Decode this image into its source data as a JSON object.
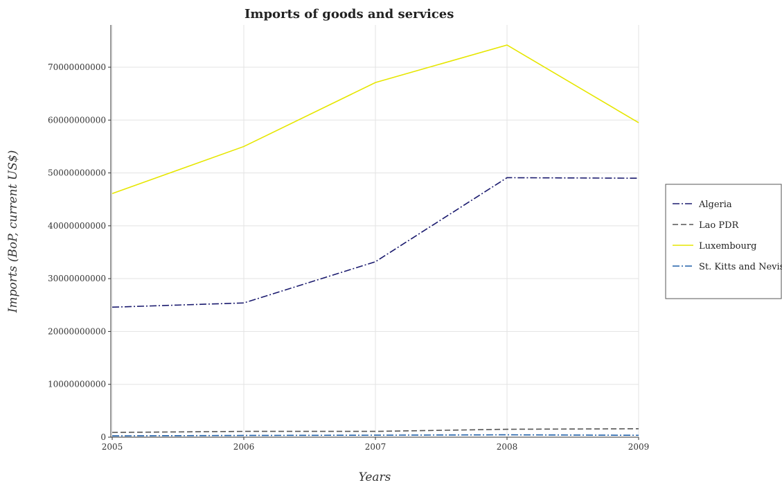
{
  "chart_data": {
    "type": "line",
    "title": "Imports of goods and services",
    "xlabel": "Years",
    "ylabel": "Imports (BoP, current US$)",
    "categories": [
      "2005",
      "2006",
      "2007",
      "2008",
      "2009"
    ],
    "ylim": [
      0,
      78000000000
    ],
    "yticks": [
      0,
      10000000000,
      20000000000,
      30000000000,
      40000000000,
      50000000000,
      60000000000,
      70000000000
    ],
    "ytick_labels": [
      "0",
      "10000000000",
      "20000000000",
      "30000000000",
      "40000000000",
      "50000000000",
      "60000000000",
      "70000000000"
    ],
    "grid": true,
    "legend_position": "right",
    "series": [
      {
        "name": "Algeria",
        "color": "#1a1a6e",
        "dash": "dashdot",
        "values": [
          24600000000,
          25400000000,
          33200000000,
          49100000000,
          49000000000
        ]
      },
      {
        "name": "Lao PDR",
        "color": "#555555",
        "dash": "dashed",
        "values": [
          900000000,
          1100000000,
          1100000000,
          1500000000,
          1600000000
        ]
      },
      {
        "name": "Luxembourg",
        "color": "#e6e600",
        "dash": "solid",
        "values": [
          46100000000,
          55000000000,
          67100000000,
          74200000000,
          59500000000
        ]
      },
      {
        "name": "St. Kitts and Nevis",
        "color": "#1f5fa8",
        "dash": "dashdot",
        "values": [
          250000000,
          330000000,
          380000000,
          450000000,
          360000000
        ]
      }
    ]
  }
}
